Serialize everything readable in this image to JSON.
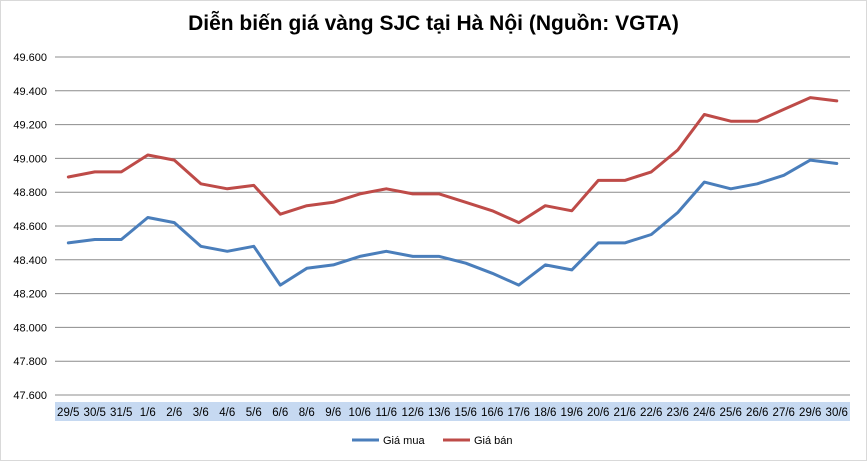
{
  "chart_data": {
    "type": "line",
    "title": "Diễn biến giá vàng SJC tại Hà Nội (Nguồn: VGTA)",
    "categories": [
      "29/5",
      "30/5",
      "31/5",
      "1/6",
      "2/6",
      "3/6",
      "4/6",
      "5/6",
      "6/6",
      "8/6",
      "9/6",
      "10/6",
      "11/6",
      "12/6",
      "13/6",
      "15/6",
      "16/6",
      "17/6",
      "18/6",
      "19/6",
      "20/6",
      "21/6",
      "22/6",
      "23/6",
      "24/6",
      "25/6",
      "26/6",
      "27/6",
      "29/6",
      "30/6"
    ],
    "series": [
      {
        "name": "Giá mua",
        "color": "#4a7ebb",
        "values": [
          48500,
          48520,
          48520,
          48650,
          48620,
          48480,
          48450,
          48480,
          48250,
          48350,
          48370,
          48420,
          48450,
          48420,
          48420,
          48380,
          48320,
          48250,
          48370,
          48340,
          48500,
          48500,
          48550,
          48680,
          48860,
          48820,
          48850,
          48900,
          48990,
          48970
        ]
      },
      {
        "name": "Giá bán",
        "color": "#be4b48",
        "values": [
          48890,
          48920,
          48920,
          49020,
          48990,
          48850,
          48820,
          48840,
          48670,
          48720,
          48740,
          48790,
          48820,
          48790,
          48790,
          48740,
          48690,
          48620,
          48720,
          48690,
          48870,
          48870,
          48920,
          49050,
          49260,
          49220,
          49220,
          49290,
          49360,
          49340
        ]
      }
    ],
    "yticks": [
      "49.600",
      "49.400",
      "49.200",
      "49.000",
      "48.800",
      "48.600",
      "48.400",
      "48.200",
      "48.000",
      "47.800",
      "47.600"
    ],
    "ylim": [
      47600,
      49600
    ],
    "grid": true,
    "legend_position": "bottom",
    "category_band_color": "#c6d9f1"
  }
}
